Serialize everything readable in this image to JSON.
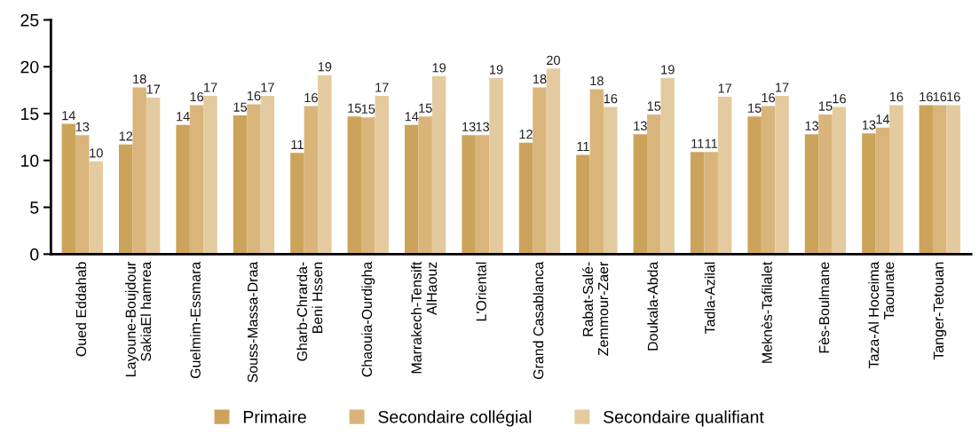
{
  "chart_data": {
    "type": "bar",
    "categories": [
      "Oued Eddahab",
      "Layoune-Boujdour\nSakiaEl hamrea",
      "Guelmim-Essmara",
      "Souss-Massa-Draa",
      "Gharb-Chrarda-\nBeni Hssen",
      "Chaouia-Ourdigha",
      "Marrakech-Tensift\nAlHaouz",
      "L'Oriental",
      "Grand Casablanca",
      "Rabat-Salé-\nZemmour-Zaer",
      "Doukala-Abda",
      "Tadla-Azilal",
      "Meknès-Tafilalet",
      "Fès-Boulmane",
      "Taza-Al Hoceima\nTaounate",
      "Tanger-Tetouan"
    ],
    "series": [
      {
        "name": "Primaire",
        "color": "#cca35a",
        "values": [
          13.9,
          11.7,
          13.8,
          14.8,
          10.8,
          14.7,
          13.8,
          12.7,
          11.9,
          10.6,
          12.8,
          10.9,
          14.7,
          12.8,
          12.9,
          15.9
        ],
        "value_labels": [
          "14",
          "12",
          "14",
          "15",
          "11",
          "15",
          "14",
          "13",
          "12",
          "11",
          "13",
          "11",
          "15",
          "13",
          "13",
          "16"
        ]
      },
      {
        "name": "Secondaire collégial",
        "color": "#d9b57b",
        "values": [
          12.7,
          17.8,
          15.9,
          16.0,
          15.8,
          14.6,
          14.7,
          12.7,
          17.8,
          17.6,
          14.9,
          10.9,
          15.8,
          14.9,
          13.5,
          15.9
        ],
        "value_labels": [
          "13",
          "18",
          "16",
          "16",
          "16",
          "15",
          "15",
          "13",
          "18",
          "18",
          "15",
          "11",
          "16",
          "15",
          "14",
          "16"
        ]
      },
      {
        "name": "Secondaire qualifiant",
        "color": "#e3cb9f",
        "values": [
          9.9,
          16.7,
          16.9,
          16.9,
          19.1,
          16.9,
          19.0,
          18.8,
          19.8,
          15.7,
          18.8,
          16.8,
          16.9,
          15.7,
          15.9,
          15.9
        ],
        "value_labels": [
          "10",
          "17",
          "17",
          "17",
          "19",
          "17",
          "19",
          "19",
          "20",
          "16",
          "19",
          "17",
          "17",
          "16",
          "16",
          "16"
        ]
      }
    ],
    "ylim": [
      0,
      25
    ],
    "yticks": [
      0,
      5,
      10,
      15,
      20,
      25
    ],
    "grid": false,
    "legend": "bottom"
  }
}
